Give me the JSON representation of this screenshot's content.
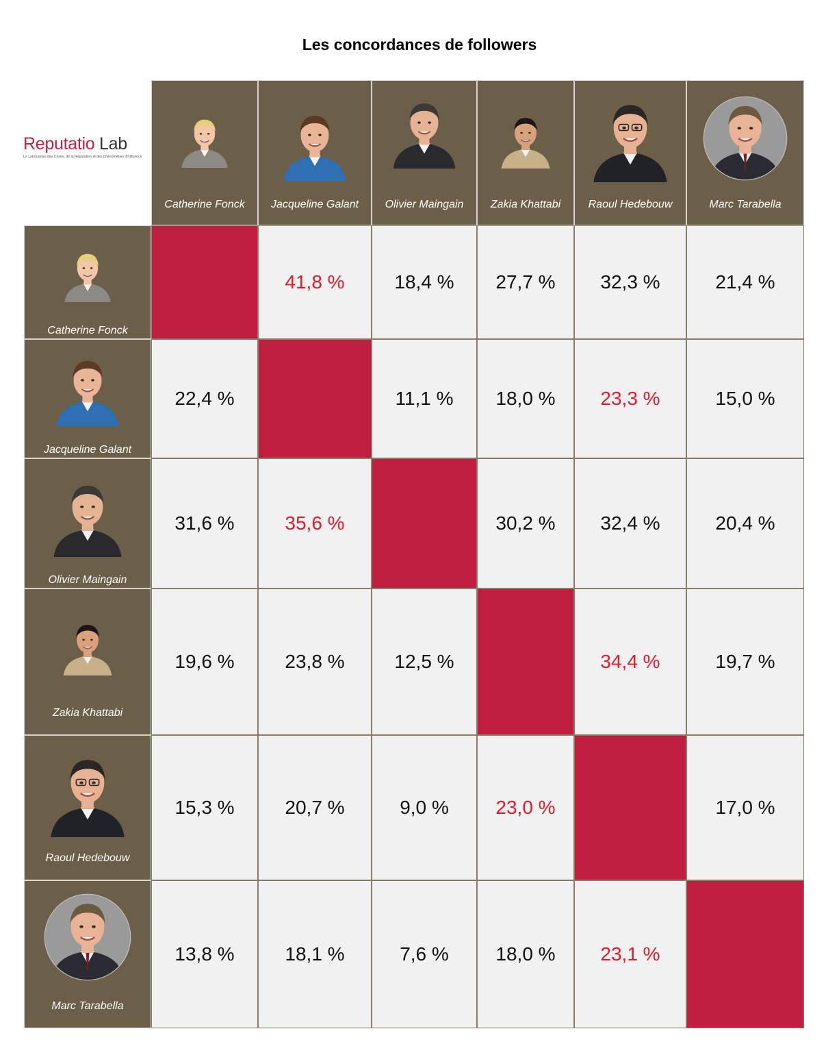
{
  "title": "Les concordances de followers",
  "logo": {
    "name_part1": "Reputatio",
    "name_part2": "Lab",
    "tagline": "Le Laboratoire des Crises, de la Réputation et des phénomènes d'Influence"
  },
  "colors": {
    "header_bg": "#6c5f49",
    "cell_bg": "#f1f1f1",
    "diagonal": "#c01f41",
    "highlight_text": "#e01b2c",
    "normal_text": "#111111"
  },
  "people": [
    {
      "name": "Catherine Fonck",
      "icon": "portrait-catherine-fonck"
    },
    {
      "name": "Jacqueline Galant",
      "icon": "portrait-jacqueline-galant"
    },
    {
      "name": "Olivier Maingain",
      "icon": "portrait-olivier-maingain"
    },
    {
      "name": "Zakia Khattabi",
      "icon": "portrait-zakia-khattabi"
    },
    {
      "name": "Raoul Hedebouw",
      "icon": "portrait-raoul-hedebouw"
    },
    {
      "name": "Marc Tarabella",
      "icon": "portrait-marc-tarabella"
    }
  ],
  "chart_data": {
    "type": "heatmap",
    "title": "Les concordances de followers",
    "rows": [
      "Catherine Fonck",
      "Jacqueline Galant",
      "Olivier Maingain",
      "Zakia Khattabi",
      "Raoul Hedebouw",
      "Marc Tarabella"
    ],
    "columns": [
      "Catherine Fonck",
      "Jacqueline Galant",
      "Olivier Maingain",
      "Zakia Khattabi",
      "Raoul Hedebouw",
      "Marc Tarabella"
    ],
    "values": [
      [
        null,
        "41,8 %",
        "18,4 %",
        "27,7 %",
        "32,3 %",
        "21,4 %"
      ],
      [
        "22,4 %",
        null,
        "11,1 %",
        "18,0 %",
        "23,3 %",
        "15,0 %"
      ],
      [
        "31,6 %",
        "35,6 %",
        null,
        "30,2 %",
        "32,4 %",
        "20,4 %"
      ],
      [
        "19,6 %",
        "23,8 %",
        "12,5 %",
        null,
        "34,4 %",
        "19,7 %"
      ],
      [
        "15,3 %",
        "20,7 %",
        "9,0 %",
        "23,0 %",
        null,
        "17,0 %"
      ],
      [
        "13,8 %",
        "18,1 %",
        "7,6 %",
        "18,0 %",
        "23,1 %",
        null
      ]
    ],
    "numeric_values": [
      [
        null,
        41.8,
        18.4,
        27.7,
        32.3,
        21.4
      ],
      [
        22.4,
        null,
        11.1,
        18.0,
        23.3,
        15.0
      ],
      [
        31.6,
        35.6,
        null,
        30.2,
        32.4,
        20.4
      ],
      [
        19.6,
        23.8,
        12.5,
        null,
        34.4,
        19.7
      ],
      [
        15.3,
        20.7,
        9.0,
        23.0,
        null,
        17.0
      ],
      [
        13.8,
        18.1,
        7.6,
        18.0,
        23.1,
        null
      ]
    ],
    "highlighted": [
      [
        false,
        true,
        false,
        false,
        false,
        false
      ],
      [
        false,
        false,
        false,
        false,
        true,
        false
      ],
      [
        false,
        true,
        false,
        false,
        false,
        false
      ],
      [
        false,
        false,
        false,
        false,
        true,
        false
      ],
      [
        false,
        false,
        false,
        true,
        false,
        false
      ],
      [
        false,
        false,
        false,
        false,
        true,
        false
      ]
    ],
    "unit": "%"
  }
}
